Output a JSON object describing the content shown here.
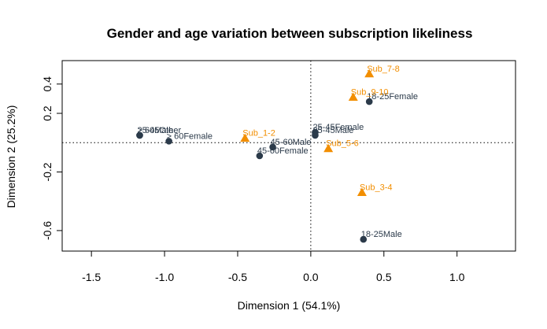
{
  "chart_data": {
    "type": "scatter",
    "title": "Gender and age variation between subscription likeliness",
    "xlabel": "Dimension 1 (54.1%)",
    "ylabel": "Dimension 2 (25.2%)",
    "xlim": [
      -1.7,
      1.4
    ],
    "ylim": [
      -0.74,
      0.56
    ],
    "x_ticks": [
      {
        "value": -1.5,
        "label": "-1.5"
      },
      {
        "value": -1.0,
        "label": "-1.0"
      },
      {
        "value": -0.5,
        "label": "-0.5"
      },
      {
        "value": 0.0,
        "label": "0.0"
      },
      {
        "value": 0.5,
        "label": "0.5"
      },
      {
        "value": 1.0,
        "label": "1.0"
      }
    ],
    "y_ticks": [
      {
        "value": 0.4,
        "label": "0.4"
      },
      {
        "value": 0.2,
        "label": "0.2"
      },
      {
        "value": -0.2,
        "label": "-0.2"
      },
      {
        "value": -0.6,
        "label": "-0.6"
      }
    ],
    "reference_lines": {
      "x": 0,
      "y": 0,
      "style": "dotted"
    },
    "series": [
      {
        "marker": "circle",
        "color": "#2b3a4a",
        "points": [
          {
            "label": "18-25Female",
            "x": 0.4,
            "y": 0.28
          },
          {
            "label": "25-45Female",
            "x": 0.03,
            "y": 0.07
          },
          {
            "label": "25-45Male",
            "x": 0.03,
            "y": 0.05
          },
          {
            "label": "45-60Male",
            "x": -0.26,
            "y": -0.03
          },
          {
            "label": "45-60Female",
            "x": -0.35,
            "y": -0.09
          },
          {
            "label": "> 60Female",
            "x": -0.97,
            "y": 0.01
          },
          {
            "label": "> 60Male",
            "x": -1.17,
            "y": 0.05
          },
          {
            "label": "25-45Other",
            "x": -1.17,
            "y": 0.05
          },
          {
            "label": "18-25Male",
            "x": 0.36,
            "y": -0.66
          }
        ]
      },
      {
        "marker": "triangle",
        "color": "#f28e00",
        "points": [
          {
            "label": "Sub_7-8",
            "x": 0.4,
            "y": 0.47
          },
          {
            "label": "Sub_9-10",
            "x": 0.29,
            "y": 0.31
          },
          {
            "label": "Sub_1-2",
            "x": -0.45,
            "y": 0.03
          },
          {
            "label": "Sub_5-6",
            "x": 0.12,
            "y": -0.04
          },
          {
            "label": "Sub_3-4",
            "x": 0.35,
            "y": -0.34
          }
        ]
      }
    ]
  }
}
